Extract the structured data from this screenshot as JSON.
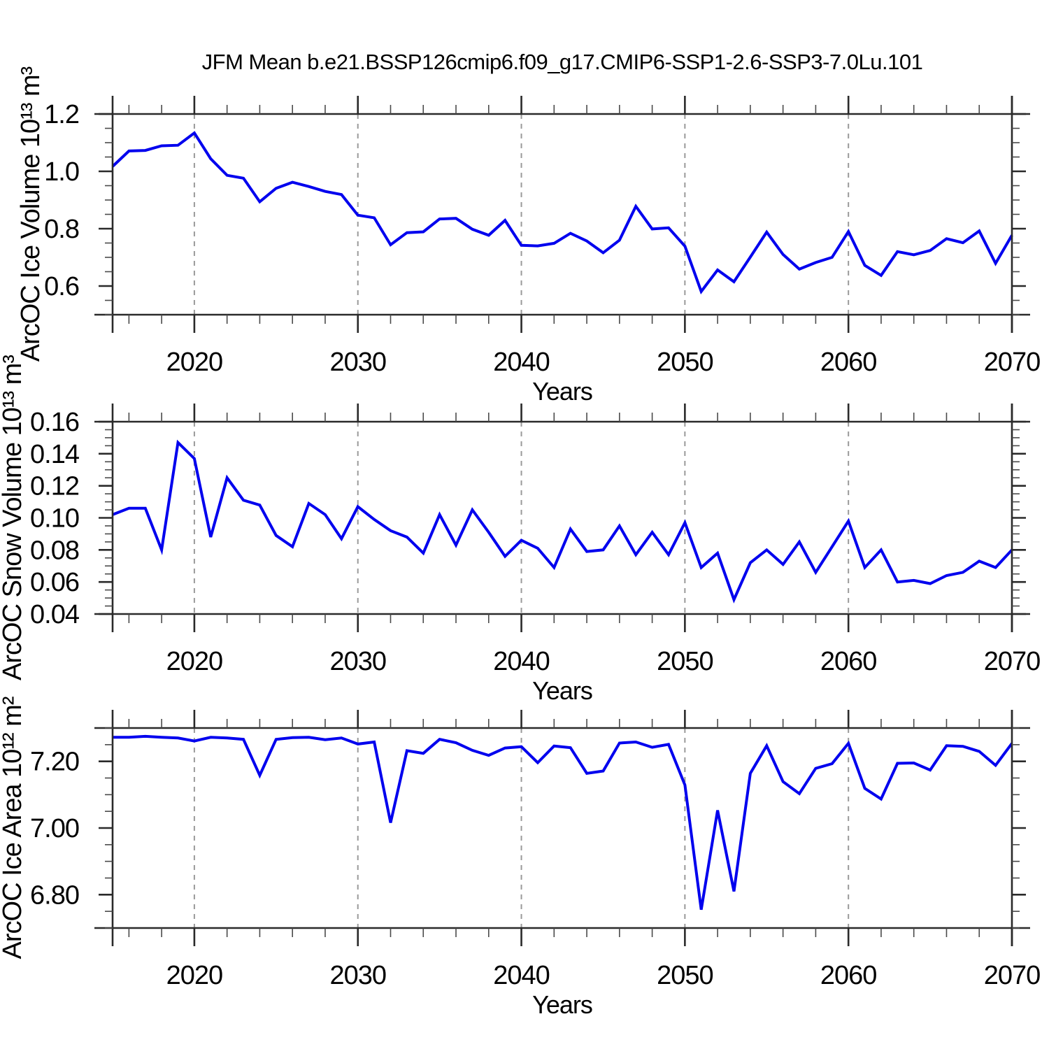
{
  "title": "JFM Mean b.e21.BSSP126cmip6.f09_g17.CMIP6-SSP1-2.6-SSP3-7.0Lu.101",
  "style": {
    "line_color": "#0000ee",
    "grid_color": "#9a9a9a",
    "frame_color": "#2a2a2a",
    "minor_tick_color": "#4a4a4a",
    "text_color": "#000000",
    "background": "#ffffff"
  },
  "chart_data": {
    "type": "line",
    "title": "JFM Mean b.e21.BSSP126cmip6.f09_g17.CMIP6-SSP1-2.6-SSP3-7.0Lu.101",
    "legend": "none",
    "grid": "vertical-dashed-at-decades",
    "x": {
      "label": "Years",
      "xlim": [
        2015,
        2070
      ],
      "values": [
        2015,
        2016,
        2017,
        2018,
        2019,
        2020,
        2021,
        2022,
        2023,
        2024,
        2025,
        2026,
        2027,
        2028,
        2029,
        2030,
        2031,
        2032,
        2033,
        2034,
        2035,
        2036,
        2037,
        2038,
        2039,
        2040,
        2041,
        2042,
        2043,
        2044,
        2045,
        2046,
        2047,
        2048,
        2049,
        2050,
        2051,
        2052,
        2053,
        2054,
        2055,
        2056,
        2057,
        2058,
        2059,
        2060,
        2061,
        2062,
        2063,
        2064,
        2065,
        2066,
        2067,
        2068,
        2069,
        2070
      ],
      "major_ticks": [
        2020,
        2030,
        2040,
        2050,
        2060,
        2070
      ],
      "tick_labels": [
        "2020",
        "2030",
        "2040",
        "2050",
        "2060",
        "2070"
      ],
      "minor_tick_step": 2,
      "grid_years": [
        2020,
        2030,
        2040,
        2050,
        2060
      ]
    },
    "panels": [
      {
        "id": "ice-volume",
        "ylabel": "ArcOC Ice Volume 10¹³ m³",
        "xlabel": "Years",
        "ylim": [
          0.5,
          1.2
        ],
        "ytick_values": [
          0.6,
          0.8,
          1.0,
          1.2
        ],
        "ytick_labels": [
          "0.6",
          "0.8",
          "1.0",
          "1.2"
        ],
        "y_minor_step": 0.05,
        "values": [
          1.017,
          1.071,
          1.073,
          1.089,
          1.091,
          1.134,
          1.044,
          0.986,
          0.976,
          0.894,
          0.941,
          0.962,
          0.947,
          0.93,
          0.919,
          0.847,
          0.838,
          0.744,
          0.786,
          0.789,
          0.834,
          0.836,
          0.798,
          0.777,
          0.829,
          0.742,
          0.74,
          0.749,
          0.784,
          0.757,
          0.716,
          0.76,
          0.878,
          0.799,
          0.803,
          0.739,
          0.581,
          0.656,
          0.615,
          0.701,
          0.788,
          0.71,
          0.659,
          0.682,
          0.7,
          0.79,
          0.672,
          0.637,
          0.72,
          0.709,
          0.724,
          0.765,
          0.751,
          0.792,
          0.679,
          0.777
        ]
      },
      {
        "id": "snow-volume",
        "ylabel": "ArcOC Snow Volume 10¹³ m³",
        "xlabel": "Years",
        "ylim": [
          0.04,
          0.16
        ],
        "ytick_values": [
          0.04,
          0.06,
          0.08,
          0.1,
          0.12,
          0.14,
          0.16
        ],
        "ytick_labels": [
          "0.04",
          "0.06",
          "0.08",
          "0.10",
          "0.12",
          "0.14",
          "0.16"
        ],
        "y_minor_step": 0.005,
        "values": [
          0.102,
          0.106,
          0.106,
          0.08,
          0.147,
          0.137,
          0.088,
          0.125,
          0.111,
          0.108,
          0.089,
          0.082,
          0.109,
          0.102,
          0.087,
          0.107,
          0.099,
          0.092,
          0.088,
          0.078,
          0.102,
          0.083,
          0.105,
          0.091,
          0.076,
          0.086,
          0.081,
          0.069,
          0.093,
          0.079,
          0.08,
          0.095,
          0.077,
          0.091,
          0.077,
          0.097,
          0.069,
          0.078,
          0.049,
          0.072,
          0.08,
          0.071,
          0.085,
          0.066,
          0.082,
          0.098,
          0.069,
          0.08,
          0.06,
          0.061,
          0.059,
          0.064,
          0.066,
          0.073,
          0.069,
          0.08
        ]
      },
      {
        "id": "ice-area",
        "ylabel": "ArcOC Ice Area 10¹² m²",
        "xlabel": "Years",
        "ylim": [
          6.7,
          7.3
        ],
        "ytick_values": [
          6.8,
          7.0,
          7.2
        ],
        "ytick_labels": [
          "6.80",
          "7.00",
          "7.20"
        ],
        "y_minor_step": 0.05,
        "values": [
          7.272,
          7.272,
          7.275,
          7.272,
          7.27,
          7.261,
          7.272,
          7.27,
          7.266,
          7.158,
          7.266,
          7.271,
          7.272,
          7.265,
          7.27,
          7.252,
          7.258,
          7.016,
          7.232,
          7.224,
          7.266,
          7.256,
          7.233,
          7.218,
          7.24,
          7.244,
          7.196,
          7.246,
          7.241,
          7.164,
          7.171,
          7.255,
          7.258,
          7.242,
          7.251,
          7.129,
          6.755,
          7.053,
          6.81,
          7.164,
          7.247,
          7.139,
          7.103,
          7.179,
          7.193,
          7.254,
          7.119,
          7.087,
          7.194,
          7.195,
          7.174,
          7.247,
          7.245,
          7.23,
          7.188,
          7.254
        ]
      }
    ]
  }
}
